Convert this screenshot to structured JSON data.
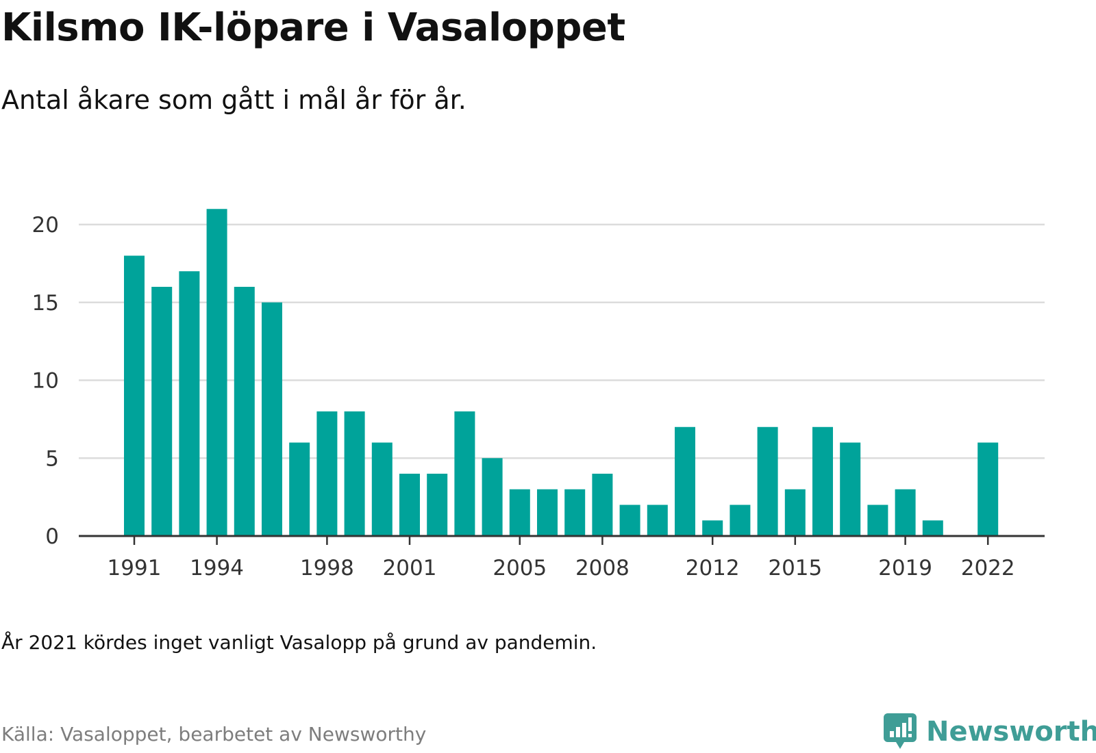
{
  "title": "Kilsmo IK-löpare i Vasaloppet",
  "subtitle": "Antal åkare som gått i mål år för år.",
  "note": "År 2021 kördes inget vanligt Vasalopp på grund av pandemin.",
  "source": "Källa: Vasaloppet, bearbetet av Newsworthy",
  "brand": {
    "name": "Newsworthy",
    "icon": "newsworthy-logo-icon"
  },
  "colors": {
    "bar": "#00a39a",
    "grid": "#dcdcdc",
    "axis": "#333333",
    "tick_text": "#333333",
    "brand": "#3f9d96"
  },
  "chart_data": {
    "type": "bar",
    "title": "Kilsmo IK-löpare i Vasaloppet",
    "subtitle": "Antal åkare som gått i mål år för år.",
    "xlabel": "",
    "ylabel": "",
    "ylim": [
      0,
      22
    ],
    "yticks": [
      0,
      5,
      10,
      15,
      20
    ],
    "xticks": [
      1991,
      1994,
      1998,
      2001,
      2005,
      2008,
      2012,
      2015,
      2019,
      2022
    ],
    "grid": true,
    "categories": [
      1991,
      1992,
      1993,
      1994,
      1995,
      1996,
      1997,
      1998,
      1999,
      2000,
      2001,
      2002,
      2003,
      2004,
      2005,
      2006,
      2007,
      2008,
      2009,
      2010,
      2011,
      2012,
      2013,
      2014,
      2015,
      2016,
      2017,
      2018,
      2019,
      2020,
      2021,
      2022
    ],
    "values": [
      18,
      16,
      17,
      21,
      16,
      15,
      6,
      8,
      8,
      6,
      4,
      4,
      8,
      5,
      3,
      3,
      3,
      4,
      2,
      2,
      7,
      1,
      2,
      7,
      3,
      7,
      6,
      2,
      3,
      1,
      null,
      6
    ]
  }
}
